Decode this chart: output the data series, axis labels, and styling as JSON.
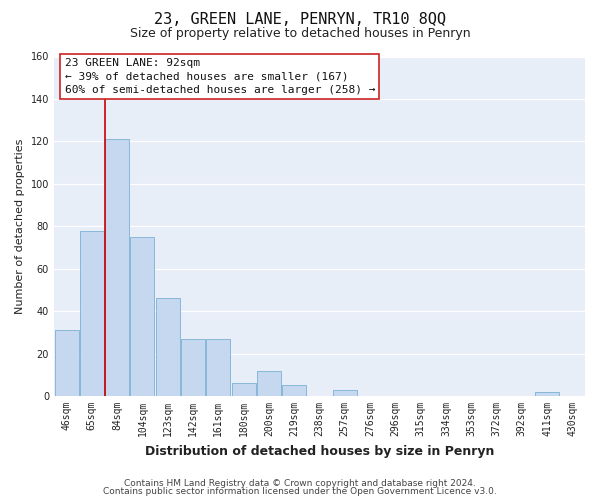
{
  "title": "23, GREEN LANE, PENRYN, TR10 8QQ",
  "subtitle": "Size of property relative to detached houses in Penryn",
  "xlabel": "Distribution of detached houses by size in Penryn",
  "ylabel": "Number of detached properties",
  "bin_labels": [
    "46sqm",
    "65sqm",
    "84sqm",
    "104sqm",
    "123sqm",
    "142sqm",
    "161sqm",
    "180sqm",
    "200sqm",
    "219sqm",
    "238sqm",
    "257sqm",
    "276sqm",
    "296sqm",
    "315sqm",
    "334sqm",
    "353sqm",
    "372sqm",
    "392sqm",
    "411sqm",
    "430sqm"
  ],
  "bar_heights": [
    31,
    78,
    121,
    75,
    46,
    27,
    27,
    6,
    12,
    5,
    0,
    3,
    0,
    0,
    0,
    0,
    0,
    0,
    0,
    2,
    0
  ],
  "bar_color": "#c5d8f0",
  "bar_edge_color": "#7ab0d4",
  "vline_color": "#cc0000",
  "vline_x_index": 2,
  "ylim": [
    0,
    160
  ],
  "yticks": [
    0,
    20,
    40,
    60,
    80,
    100,
    120,
    140,
    160
  ],
  "annotation_title": "23 GREEN LANE: 92sqm",
  "annotation_line1": "← 39% of detached houses are smaller (167)",
  "annotation_line2": "60% of semi-detached houses are larger (258) →",
  "footer_line1": "Contains HM Land Registry data © Crown copyright and database right 2024.",
  "footer_line2": "Contains public sector information licensed under the Open Government Licence v3.0.",
  "plot_bg_color": "#e8eef8",
  "fig_bg_color": "#ffffff",
  "grid_color": "#ffffff",
  "title_fontsize": 11,
  "subtitle_fontsize": 9,
  "xlabel_fontsize": 9,
  "ylabel_fontsize": 8,
  "tick_fontsize": 7,
  "footer_fontsize": 6.5,
  "ann_fontsize": 8
}
